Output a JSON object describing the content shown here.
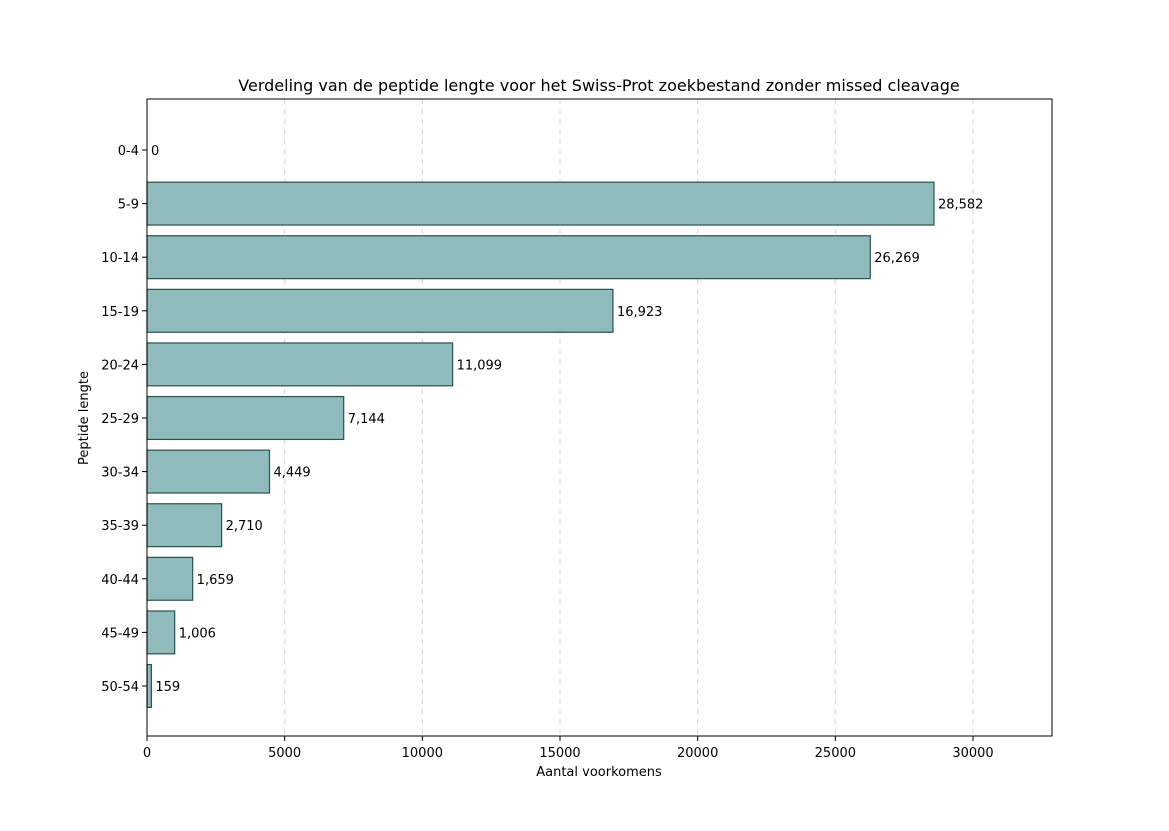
{
  "chart_data": {
    "type": "bar",
    "orientation": "horizontal",
    "title": "Verdeling van de peptide lengte voor het Swiss-Prot zoekbestand zonder missed cleavage",
    "xlabel": "Aantal voorkomens",
    "ylabel": "Peptide lengte",
    "categories": [
      "0-4",
      "5-9",
      "10-14",
      "15-19",
      "20-24",
      "25-29",
      "30-34",
      "35-39",
      "40-44",
      "45-49",
      "50-54"
    ],
    "values": [
      0,
      28582,
      26269,
      16923,
      11099,
      7144,
      4449,
      2710,
      1659,
      1006,
      159
    ],
    "value_labels": [
      "0",
      "28,582",
      "26,269",
      "16,923",
      "11,099",
      "7,144",
      "4,449",
      "2,710",
      "1,659",
      "1,006",
      "159"
    ],
    "xlim": [
      0,
      32869
    ],
    "xticks": [
      0,
      5000,
      10000,
      15000,
      20000,
      25000,
      30000
    ],
    "xtick_labels": [
      "0",
      "5000",
      "10000",
      "15000",
      "20000",
      "25000",
      "30000"
    ],
    "grid": "x-dashed",
    "legend": "none",
    "colors": {
      "bar_fill": "#8fbbbc",
      "bar_edge": "#2f4f4f",
      "grid": "#d3d3d3",
      "axis": "#000000"
    }
  }
}
